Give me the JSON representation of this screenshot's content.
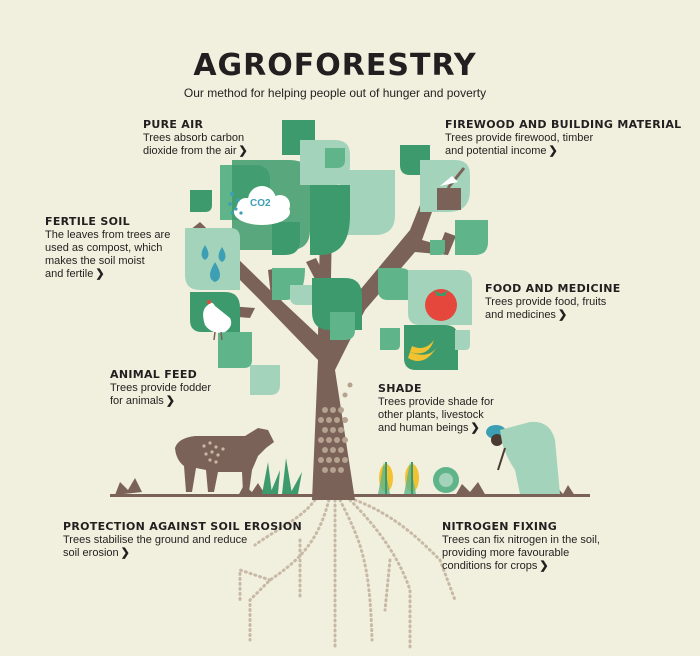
{
  "title": "AGROFORESTRY",
  "subtitle": "Our method for helping people out of hunger and poverty",
  "co2_label": "CO2",
  "chevron_glyph": "❯",
  "colors": {
    "background": "#f1efdd",
    "trunk": "#7a6258",
    "leaf_dark": "#3d9a6c",
    "leaf_mid": "#5fb48a",
    "leaf_light": "#a3d4bb",
    "root_dots": "#c7b9a6",
    "text": "#231f20"
  },
  "callouts": {
    "pure_air": {
      "heading": "PURE AIR",
      "lines": [
        "Trees absorb carbon",
        "dioxide from the air"
      ]
    },
    "firewood": {
      "heading": "FIREWOOD AND BUILDING MATERIAL",
      "lines": [
        "Trees provide firewood, timber",
        "and potential income"
      ]
    },
    "fertile_soil": {
      "heading": "FERTILE SOIL",
      "lines": [
        "The leaves from trees are",
        "used as compost, which",
        "makes the soil moist",
        "and fertile"
      ]
    },
    "food_medicine": {
      "heading": "FOOD AND MEDICINE",
      "lines": [
        "Trees provide food, fruits",
        "and medicines"
      ]
    },
    "animal_feed": {
      "heading": "ANIMAL FEED",
      "lines": [
        "Trees provide fodder",
        "for animals"
      ]
    },
    "shade": {
      "heading": "SHADE",
      "lines": [
        "Trees provide shade for",
        "other plants, livestock",
        "and human beings"
      ]
    },
    "soil_erosion": {
      "heading": "PROTECTION AGAINST SOIL EROSION",
      "lines": [
        "Trees stabilise the ground and reduce",
        "soil erosion"
      ]
    },
    "nitrogen": {
      "heading": "NITROGEN FIXING",
      "lines": [
        "Trees can fix nitrogen in the soil,",
        "providing more favourable",
        "conditions for crops"
      ]
    }
  }
}
